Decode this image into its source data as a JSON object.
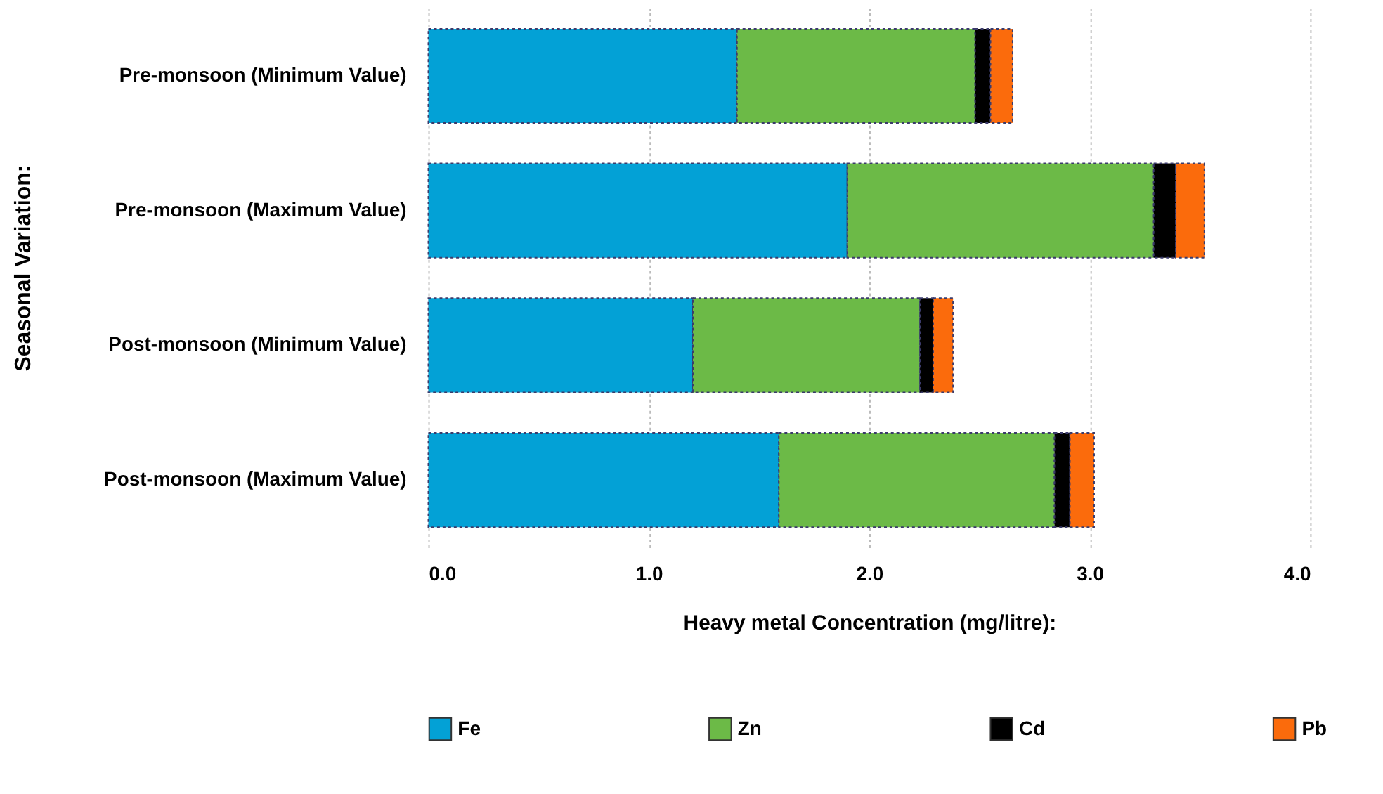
{
  "chart_data": {
    "type": "bar",
    "orientation": "horizontal",
    "stacked": true,
    "xlabel": "Heavy metal Concentration (mg/litre):",
    "ylabel": "Seasonal Variation:",
    "categories": [
      "Pre-monsoon (Minimum Value)",
      "Pre-monsoon (Maximum Value)",
      "Post-monsoon (Minimum Value)",
      "Post-monsoon (Maximum Value)"
    ],
    "series": [
      {
        "name": "Fe",
        "color": "#03a1d6",
        "values": [
          1.4,
          1.9,
          1.2,
          1.59
        ]
      },
      {
        "name": "Zn",
        "color": "#6cba47",
        "values": [
          1.08,
          1.39,
          1.03,
          1.25
        ]
      },
      {
        "name": "Cd",
        "color": "#000000",
        "values": [
          0.07,
          0.1,
          0.06,
          0.07
        ]
      },
      {
        "name": "Pb",
        "color": "#fb6b0c",
        "values": [
          0.1,
          0.13,
          0.09,
          0.11
        ]
      }
    ],
    "xlim": [
      0,
      4
    ],
    "xticks": [
      {
        "value": 0,
        "label": "0.0"
      },
      {
        "value": 1,
        "label": "1.0"
      },
      {
        "value": 2,
        "label": "2.0"
      },
      {
        "value": 3,
        "label": "3.0"
      },
      {
        "value": 4,
        "label": "4.0"
      }
    ],
    "grid": "x",
    "legend": "bottom"
  }
}
